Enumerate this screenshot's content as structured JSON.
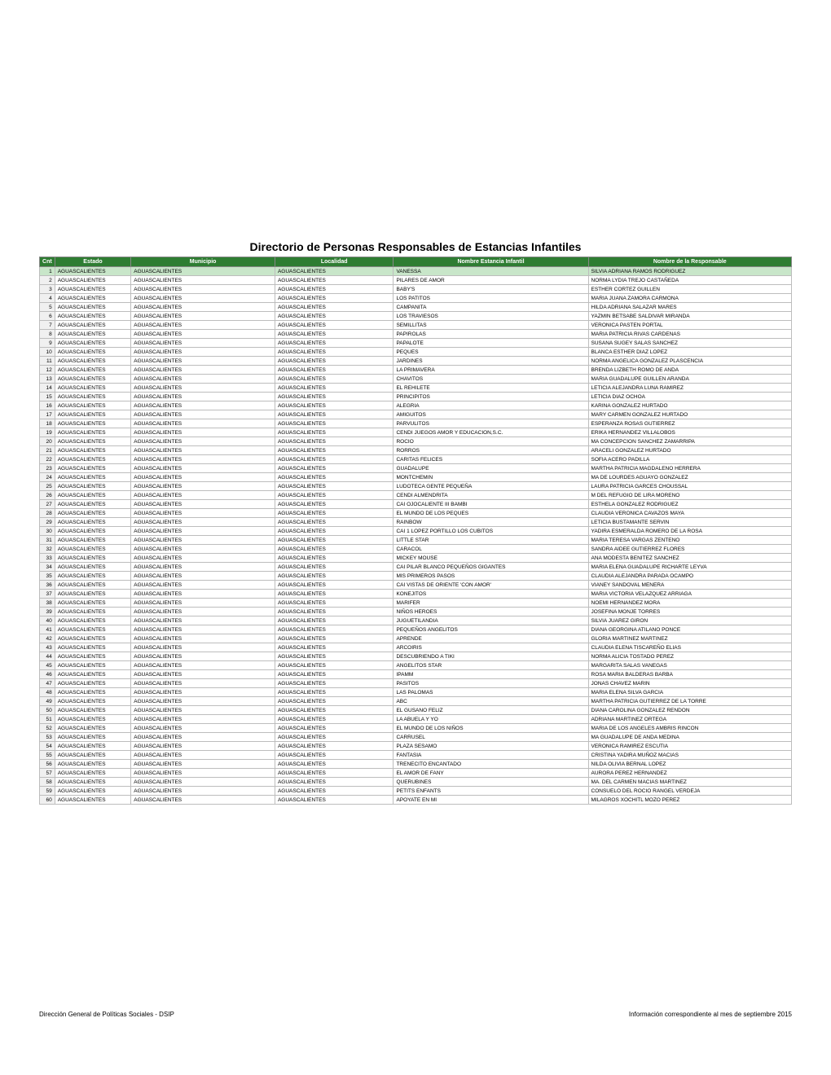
{
  "title": "Directorio de Personas Responsables de Estancias Infantiles",
  "footer_left": "Dirección General de Políticas Sociales - DSIP",
  "footer_right": "Información correspondiente al mes de septiembre 2015",
  "colors": {
    "header_bg": "#2e7d32",
    "header_fg": "#ffffff",
    "row1_bg": "#c8e6c9",
    "border": "#bdbdbd",
    "cnt_bg": "#f0f0f0"
  },
  "columns": [
    "Cnt",
    "Estado",
    "Municipio",
    "Localidad",
    "Nombre Estancia Infantil",
    "Nombre de la Responsable"
  ],
  "default_estado": "AGUASCALIENTES",
  "default_municipio": "AGUASCALIENTES",
  "default_localidad": "AGUASCALIENTES",
  "rows": [
    {
      "n": 1,
      "est": "VANESSA",
      "resp": "SILVIA ADRIANA RAMOS RODRIGUEZ"
    },
    {
      "n": 2,
      "est": "PILARES DE AMOR",
      "resp": "NORMA LYDIA TREJO CASTAÑEDA"
    },
    {
      "n": 3,
      "est": "BABY'S",
      "resp": "ESTHER CORTEZ GUILLEN"
    },
    {
      "n": 4,
      "est": "LOS PATITOS",
      "resp": "MARIA JUANA ZAMORA CARMONA"
    },
    {
      "n": 5,
      "est": "CAMPANITA",
      "resp": "HILDA ADRIANA SALAZAR MARES"
    },
    {
      "n": 6,
      "est": "LOS TRAVIESOS",
      "resp": "YAZMIN BETSABE SALDIVAR MIRANDA"
    },
    {
      "n": 7,
      "est": "SEMILLITAS",
      "resp": "VERONICA PASTEN PORTAL"
    },
    {
      "n": 8,
      "est": "PAPIROLAS",
      "resp": "MARIA PATRICIA RIVAS CARDENAS"
    },
    {
      "n": 9,
      "est": "PAPALOTE",
      "resp": "SUSANA SUGEY SALAS SANCHEZ"
    },
    {
      "n": 10,
      "est": "PEQUES",
      "resp": "BLANCA ESTHER DIAZ LOPEZ"
    },
    {
      "n": 11,
      "est": "JARDINES",
      "resp": "NORMA ANGELICA GONZALEZ PLASCENCIA"
    },
    {
      "n": 12,
      "est": "LA PRIMAVERA",
      "resp": "BRENDA LIZBETH ROMO DE ANDA"
    },
    {
      "n": 13,
      "est": "CHAVITOS",
      "resp": "MARIA GUADALUPE GUILLEN ARANDA"
    },
    {
      "n": 14,
      "est": "EL REHILETE",
      "resp": "LETICIA ALEJANDRA LUNA RAMIREZ"
    },
    {
      "n": 15,
      "est": "PRINCIPITOS",
      "resp": "LETICIA DIAZ OCHOA"
    },
    {
      "n": 16,
      "est": "ALEGRIA",
      "resp": "KARINA GONZALEZ HURTADO"
    },
    {
      "n": 17,
      "est": "AMIGUITOS",
      "resp": "MARY CARMEN GONZALEZ HURTADO"
    },
    {
      "n": 18,
      "est": "PARVULITOS",
      "resp": "ESPERANZA ROSAS GUTIERREZ"
    },
    {
      "n": 19,
      "est": "CENDI JUEGOS AMOR Y EDUCACION,S.C.",
      "resp": "ERIKA HERNANDEZ VILLALOBOS"
    },
    {
      "n": 20,
      "est": "ROCIO",
      "resp": "MA CONCEPCION SANCHEZ ZAMARRIPA"
    },
    {
      "n": 21,
      "est": "RORROS",
      "resp": "ARACELI GONZALEZ HURTADO"
    },
    {
      "n": 22,
      "est": "CARITAS FELICES",
      "resp": "SOFIA ACERO PADILLA"
    },
    {
      "n": 23,
      "est": "GUADALUPE",
      "resp": "MARTHA PATRICIA MAGDALENO HERRERA"
    },
    {
      "n": 24,
      "est": "MONTCHEMIN",
      "resp": "MA DE LOURDES AGUAYO GONZALEZ"
    },
    {
      "n": 25,
      "est": "LUDOTECA GENTE PEQUEÑA",
      "resp": "LAURA PATRICIA GARCES CHOUSSAL"
    },
    {
      "n": 26,
      "est": "CENDI ALMENDRITA",
      "resp": "M DEL REFUGIO DE LIRA MORENO"
    },
    {
      "n": 27,
      "est": "CAI OJOCALIENTE III BAMBI",
      "resp": "ESTHELA GONZALEZ RODRIGUEZ"
    },
    {
      "n": 28,
      "est": "EL MUNDO DE LOS PEQUES",
      "resp": "CLAUDIA VERONICA CAVAZOS MAYA"
    },
    {
      "n": 29,
      "est": "RAINBOW",
      "resp": "LETICIA BUSTAMANTE SERVIN"
    },
    {
      "n": 30,
      "est": "CAI 1 LOPEZ PORTILLO LOS CUBITOS",
      "resp": "YADIRA ESMERALDA ROMERO DE LA ROSA"
    },
    {
      "n": 31,
      "est": "LITTLE STAR",
      "resp": "MARIA TERESA VARGAS ZENTENO"
    },
    {
      "n": 32,
      "est": "CARACOL",
      "resp": "SANDRA AIDEE GUTIERREZ FLORES"
    },
    {
      "n": 33,
      "est": "MICKEY MOUSE",
      "resp": "ANA MODESTA BENITEZ SANCHEZ"
    },
    {
      "n": 34,
      "est": "CAI PILAR BLANCO PEQUEÑOS GIGANTES",
      "resp": "MARIA ELENA GUADALUPE RICHARTE LEYVA"
    },
    {
      "n": 35,
      "est": "MIS PRIMEROS PASOS",
      "resp": "CLAUDIA ALEJANDRA PARADA OCAMPO"
    },
    {
      "n": 36,
      "est": "CAI VISTAS DE ORIENTE 'CON AMOR'",
      "resp": "VIANEY SANDOVAL MENERA"
    },
    {
      "n": 37,
      "est": "KONEJITOS",
      "resp": "MARIA VICTORIA VELAZQUEZ ARRIAGA"
    },
    {
      "n": 38,
      "est": "MARIFER",
      "resp": "NOEMI HERNANDEZ MORA"
    },
    {
      "n": 39,
      "est": "NIÑOS HEROES",
      "resp": "JOSEFINA MONJE TORRES"
    },
    {
      "n": 40,
      "est": "JUGUETILANDIA",
      "resp": "SILVIA JUAREZ GIRON"
    },
    {
      "n": 41,
      "est": "PEQUEÑOS ANGELITOS",
      "resp": "DIANA GEORGINA ATILANO PONCE"
    },
    {
      "n": 42,
      "est": "APRENDE",
      "resp": "GLORIA MARTINEZ MARTINEZ"
    },
    {
      "n": 43,
      "est": "ARCOIRIS",
      "resp": "CLAUDIA ELENA TISCAREÑO ELIAS"
    },
    {
      "n": 44,
      "est": "DESCUBRIENDO A TIKI",
      "resp": "NORMA ALICIA TOSTADO PEREZ"
    },
    {
      "n": 45,
      "est": "ANGELITOS STAR",
      "resp": "MARGARITA SALAS VANEGAS"
    },
    {
      "n": 46,
      "est": "IPAMM",
      "resp": "ROSA MARIA BALDERAS BARBA"
    },
    {
      "n": 47,
      "est": "PASITOS",
      "resp": "JONAS CHAVEZ MARIN"
    },
    {
      "n": 48,
      "est": "LAS PALOMAS",
      "resp": "MARIA ELENA SILVA GARCIA"
    },
    {
      "n": 49,
      "est": "ABC",
      "resp": "MARTHA PATRICIA GUTIERREZ DE LA TORRE"
    },
    {
      "n": 50,
      "est": "EL GUSANO FELIZ",
      "resp": "DIANA CAROLINA GONZALEZ RENDON"
    },
    {
      "n": 51,
      "est": "LA ABUELA Y YO",
      "resp": "ADRIANA MARTINEZ ORTEGA"
    },
    {
      "n": 52,
      "est": "EL MUNDO DE LOS NIÑOS",
      "resp": "MARIA DE LOS ANGELES AMBRIS RINCON"
    },
    {
      "n": 53,
      "est": "CARRUSEL",
      "resp": "MA GUADALUPE DE ANDA MEDINA"
    },
    {
      "n": 54,
      "est": "PLAZA SESAMO",
      "resp": "VERONICA RAMIREZ ESCUTIA"
    },
    {
      "n": 55,
      "est": "FANTASIA",
      "resp": "CRISTINA YADIRA MUÑOZ MACIAS"
    },
    {
      "n": 56,
      "est": "TRENECITO ENCANTADO",
      "resp": "NILDA OLIVIA BERNAL LOPEZ"
    },
    {
      "n": 57,
      "est": "EL AMOR DE FANY",
      "resp": "AURORA PEREZ HERNANDEZ"
    },
    {
      "n": 58,
      "est": "QUERUBINES",
      "resp": "MA. DEL CARMEN MACIAS MARTINEZ"
    },
    {
      "n": 59,
      "est": "PETITS ENFANTS",
      "resp": "CONSUELO DEL ROCIO RANGEL VERDEJA"
    },
    {
      "n": 60,
      "est": "APOYATE EN MI",
      "resp": "MILAGROS XOCHITL MOZO PEREZ"
    }
  ]
}
